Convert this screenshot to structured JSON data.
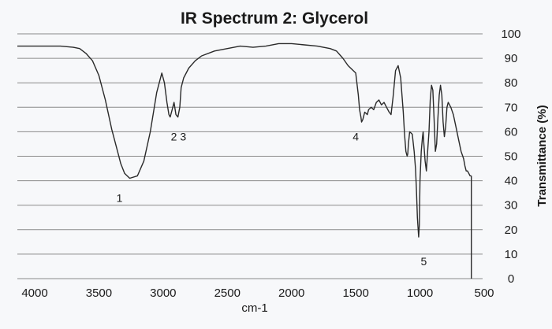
{
  "chart_data": {
    "type": "line",
    "title": "IR Spectrum 2: Glycerol",
    "xlabel": "cm-1",
    "ylabel": "Transmittance (%)",
    "xlim": [
      4000,
      500
    ],
    "ylim": [
      0,
      100
    ],
    "x_reversed": true,
    "grid": true,
    "y_axis_side": "right",
    "x_ticks": [
      "4000",
      "3500",
      "3000",
      "2500",
      "2000",
      "1500",
      "1000",
      "500"
    ],
    "y_ticks": [
      "100",
      "90",
      "80",
      "70",
      "60",
      "50",
      "40",
      "30",
      "20",
      "10",
      "0"
    ],
    "series": [
      {
        "x": [
          3990,
          3900,
          3800,
          3700,
          3650,
          3600,
          3550,
          3500,
          3450,
          3400,
          3350,
          3330,
          3300,
          3260,
          3200,
          3150,
          3100,
          3050,
          3010,
          2990,
          2970,
          2955,
          2945,
          2930,
          2915,
          2900,
          2885,
          2870,
          2860,
          2840,
          2800,
          2750,
          2700,
          2600,
          2500,
          2400,
          2300,
          2200,
          2100,
          2000,
          1900,
          1800,
          1700,
          1650,
          1600,
          1560,
          1540,
          1500,
          1480,
          1470,
          1460,
          1455,
          1445,
          1430,
          1410,
          1400,
          1380,
          1360,
          1340,
          1320,
          1300,
          1280,
          1260,
          1240,
          1225,
          1210,
          1190,
          1170,
          1150,
          1130,
          1120,
          1110,
          1100,
          1095,
          1090,
          1080,
          1060,
          1045,
          1035,
          1028,
          1020,
          1010,
          1005,
          1000,
          990,
          980,
          975,
          970,
          960,
          950,
          940,
          930,
          920,
          910,
          900,
          890,
          880,
          870,
          860,
          850,
          840,
          830,
          820,
          810,
          800,
          790,
          780,
          760,
          740,
          720,
          700,
          680,
          660,
          650,
          640,
          630,
          620,
          610,
          600
        ],
        "y": [
          95,
          95,
          95,
          94.5,
          94,
          92,
          89,
          83,
          73,
          61,
          51,
          47,
          43,
          41,
          42,
          48,
          60,
          76,
          84,
          80,
          72,
          67,
          66,
          69,
          72,
          67,
          66,
          70,
          78,
          82,
          86,
          89,
          91,
          93,
          94,
          95,
          94.5,
          95,
          96,
          96,
          95.5,
          95,
          94,
          93,
          90,
          87,
          86,
          84,
          75,
          69,
          66,
          64,
          65,
          68,
          67,
          69,
          70,
          69,
          72,
          73,
          71,
          72,
          70,
          68,
          67,
          74,
          85,
          87,
          82,
          68,
          59,
          52,
          50,
          51,
          55,
          60,
          59,
          52,
          45,
          37,
          25,
          17,
          22,
          40,
          52,
          58,
          60,
          55,
          48,
          44,
          52,
          60,
          73,
          79,
          77,
          65,
          52,
          55,
          66,
          75,
          79,
          75,
          64,
          58,
          62,
          70,
          72,
          70,
          67,
          62,
          57,
          52,
          49,
          46,
          44,
          44,
          43,
          42,
          42
        ]
      }
    ],
    "annotations": [
      {
        "text": "1",
        "x": 3340,
        "y": 33
      },
      {
        "text": "2 3",
        "x": 2880,
        "y": 58
      },
      {
        "text": "4",
        "x": 1500,
        "y": 58
      },
      {
        "text": "5",
        "x": 970,
        "y": 7
      }
    ]
  }
}
